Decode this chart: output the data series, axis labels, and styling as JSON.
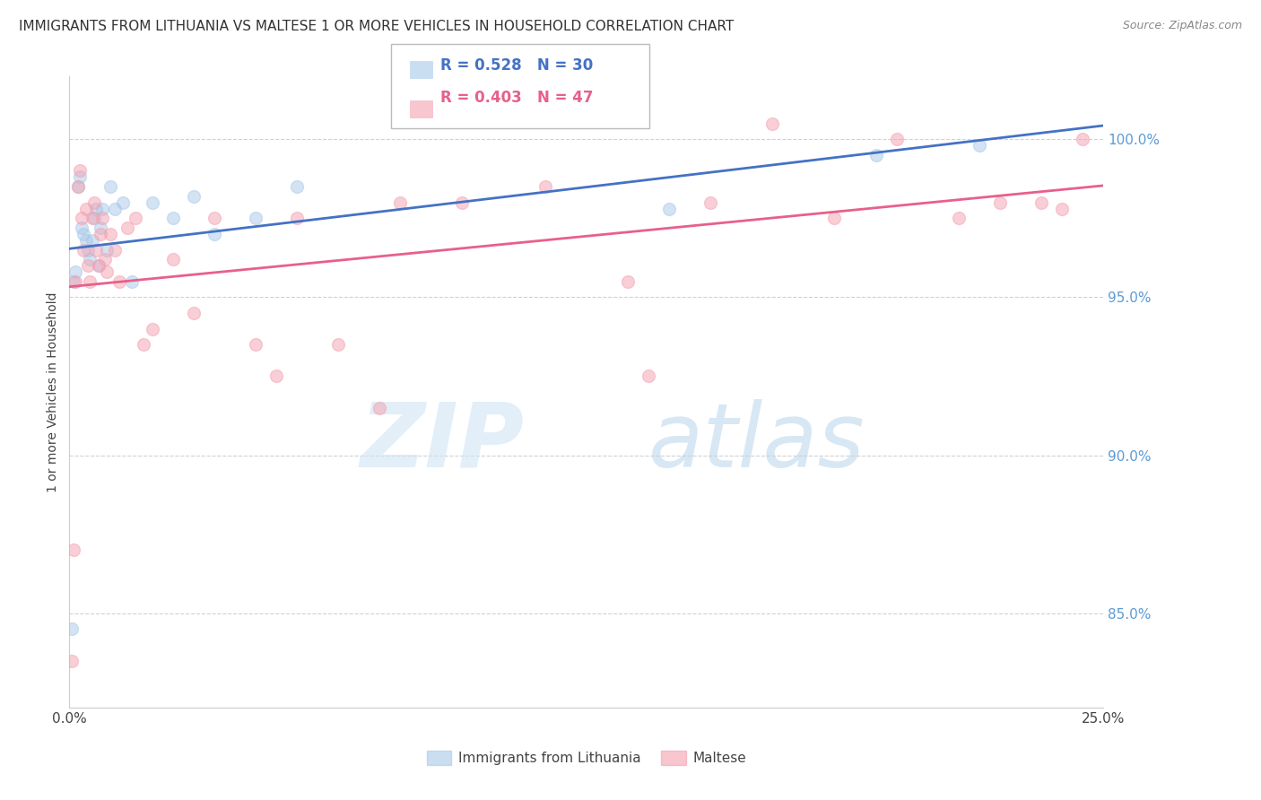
{
  "title": "IMMIGRANTS FROM LITHUANIA VS MALTESE 1 OR MORE VEHICLES IN HOUSEHOLD CORRELATION CHART",
  "source": "Source: ZipAtlas.com",
  "ylabel": "1 or more Vehicles in Household",
  "xlim": [
    0.0,
    25.0
  ],
  "ylim": [
    82.0,
    102.0
  ],
  "yticks": [
    85.0,
    90.0,
    95.0,
    100.0
  ],
  "xticks": [
    0.0,
    5.0,
    10.0,
    15.0,
    20.0,
    25.0
  ],
  "xtick_labels": [
    "0.0%",
    "",
    "",
    "",
    "",
    "25.0%"
  ],
  "ytick_labels": [
    "85.0%",
    "90.0%",
    "95.0%",
    "100.0%"
  ],
  "blue_color": "#a8c8e8",
  "pink_color": "#f4a0b0",
  "blue_line_color": "#4472c4",
  "pink_line_color": "#e8608a",
  "legend_blue_r": "R = 0.528",
  "legend_blue_n": "N = 30",
  "legend_pink_r": "R = 0.403",
  "legend_pink_n": "N = 47",
  "watermark_zip": "ZIP",
  "watermark_atlas": "atlas",
  "background_color": "#ffffff",
  "title_fontsize": 11,
  "axis_label_fontsize": 10,
  "tick_fontsize": 11,
  "marker_size": 100,
  "blue_scatter_x": [
    0.05,
    0.1,
    0.15,
    0.2,
    0.25,
    0.3,
    0.35,
    0.4,
    0.45,
    0.5,
    0.55,
    0.6,
    0.65,
    0.7,
    0.75,
    0.8,
    0.9,
    1.0,
    1.1,
    1.3,
    1.5,
    2.0,
    2.5,
    3.0,
    3.5,
    4.5,
    5.5,
    14.5,
    19.5,
    22.0
  ],
  "blue_scatter_y": [
    84.5,
    95.5,
    95.8,
    98.5,
    98.8,
    97.2,
    97.0,
    96.8,
    96.5,
    96.2,
    96.8,
    97.5,
    97.8,
    96.0,
    97.2,
    97.8,
    96.5,
    98.5,
    97.8,
    98.0,
    95.5,
    98.0,
    97.5,
    98.2,
    97.0,
    97.5,
    98.5,
    97.8,
    99.5,
    99.8
  ],
  "pink_scatter_x": [
    0.05,
    0.1,
    0.15,
    0.2,
    0.25,
    0.3,
    0.35,
    0.4,
    0.45,
    0.5,
    0.55,
    0.6,
    0.65,
    0.7,
    0.75,
    0.8,
    0.85,
    0.9,
    1.0,
    1.1,
    1.2,
    1.4,
    1.6,
    1.8,
    2.0,
    2.5,
    3.0,
    3.5,
    4.5,
    5.0,
    5.5,
    6.5,
    7.5,
    8.0,
    9.5,
    11.5,
    13.5,
    14.0,
    15.5,
    17.0,
    18.5,
    20.0,
    21.5,
    22.5,
    23.5,
    24.0,
    24.5
  ],
  "pink_scatter_y": [
    83.5,
    87.0,
    95.5,
    98.5,
    99.0,
    97.5,
    96.5,
    97.8,
    96.0,
    95.5,
    97.5,
    98.0,
    96.5,
    96.0,
    97.0,
    97.5,
    96.2,
    95.8,
    97.0,
    96.5,
    95.5,
    97.2,
    97.5,
    93.5,
    94.0,
    96.2,
    94.5,
    97.5,
    93.5,
    92.5,
    97.5,
    93.5,
    91.5,
    98.0,
    98.0,
    98.5,
    95.5,
    92.5,
    98.0,
    100.5,
    97.5,
    100.0,
    97.5,
    98.0,
    98.0,
    97.8,
    100.0
  ]
}
